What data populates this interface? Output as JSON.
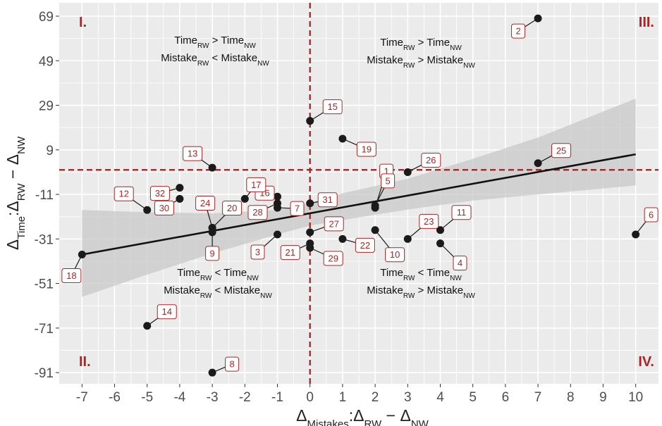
{
  "chart_data": {
    "type": "scatter",
    "title": "",
    "xlabel": {
      "main": "Δ",
      "sub": "Mistakes",
      "rest": ":Δ",
      "sub2": "RW",
      "rest2": " − Δ",
      "sub3": "NW"
    },
    "ylabel": {
      "main": "Δ",
      "sub": "Time",
      "rest": ":Δ",
      "sub2": "RW",
      "rest2": " − Δ",
      "sub3": "NW"
    },
    "xlim": [
      -7.7,
      10.7
    ],
    "ylim": [
      -96,
      75
    ],
    "xticks": [
      -7,
      -6,
      -5,
      -4,
      -3,
      -2,
      -1,
      0,
      1,
      2,
      3,
      4,
      5,
      6,
      7,
      8,
      9,
      10
    ],
    "yticks": [
      69,
      49,
      29,
      9,
      -11,
      -31,
      -51,
      -71,
      -91
    ],
    "grid": true,
    "colors": {
      "panel": "#ebebeb",
      "grid": "#ffffff",
      "points": "#1a1a1a",
      "label": "#b22222",
      "reference_line": "#a51e1e",
      "fit_line": "#111111",
      "ribbon": "#c8c8c8"
    },
    "reference_lines": {
      "x": 0,
      "y": 0
    },
    "points": [
      {
        "id": "1",
        "x": 2,
        "y": -17
      },
      {
        "id": "2",
        "x": 7,
        "y": 68
      },
      {
        "id": "3",
        "x": -1,
        "y": -29
      },
      {
        "id": "4",
        "x": 4,
        "y": -33
      },
      {
        "id": "5",
        "x": 2,
        "y": -16
      },
      {
        "id": "6",
        "x": 10,
        "y": -29
      },
      {
        "id": "7",
        "x": -1,
        "y": -17
      },
      {
        "id": "8",
        "x": -3,
        "y": -91
      },
      {
        "id": "9",
        "x": -3,
        "y": -28
      },
      {
        "id": "10",
        "x": 2,
        "y": -27
      },
      {
        "id": "11",
        "x": 4,
        "y": -27
      },
      {
        "id": "12",
        "x": -5,
        "y": -18
      },
      {
        "id": "13",
        "x": -3,
        "y": 1
      },
      {
        "id": "14",
        "x": -5,
        "y": -70
      },
      {
        "id": "15",
        "x": 0,
        "y": 22
      },
      {
        "id": "16",
        "x": -1,
        "y": -12
      },
      {
        "id": "17",
        "x": -2,
        "y": -13
      },
      {
        "id": "18",
        "x": -7,
        "y": -38
      },
      {
        "id": "19",
        "x": 1,
        "y": 14
      },
      {
        "id": "20",
        "x": -3,
        "y": -26
      },
      {
        "id": "21",
        "x": 0,
        "y": -33
      },
      {
        "id": "22",
        "x": 1,
        "y": -31
      },
      {
        "id": "23",
        "x": 3,
        "y": -31
      },
      {
        "id": "24",
        "x": -3,
        "y": -26
      },
      {
        "id": "25",
        "x": 7,
        "y": 3
      },
      {
        "id": "26",
        "x": 3,
        "y": -1
      },
      {
        "id": "27",
        "x": 0,
        "y": -28
      },
      {
        "id": "28",
        "x": -1,
        "y": -15
      },
      {
        "id": "29",
        "x": 0,
        "y": -35
      },
      {
        "id": "30",
        "x": -4,
        "y": -13
      },
      {
        "id": "31",
        "x": 0,
        "y": -15
      },
      {
        "id": "32",
        "x": -4,
        "y": -8
      }
    ],
    "fit": {
      "x": [
        -7,
        10
      ],
      "y": [
        -38,
        7
      ]
    },
    "ribbon": {
      "x": [
        -7,
        -5,
        -3,
        -1,
        0,
        1,
        3,
        5,
        7,
        10
      ],
      "upper": [
        -18,
        -19,
        -19.5,
        -18,
        -15,
        -10.5,
        -4,
        5,
        14.5,
        32
      ],
      "lower": [
        -57,
        -47,
        -37.5,
        -29,
        -25,
        -22.5,
        -17.8,
        -13.8,
        -11,
        -7
      ]
    },
    "quadrants": [
      {
        "numeral": "I.",
        "corner": "top-left"
      },
      {
        "numeral": "II.",
        "corner": "bottom-left"
      },
      {
        "numeral": "III.",
        "corner": "top-right"
      },
      {
        "numeral": "IV.",
        "corner": "bottom-right"
      }
    ],
    "annotations": [
      {
        "position": "upper-left",
        "line1": [
          {
            "t": "Time"
          },
          {
            "t": "RW",
            "sub": true
          },
          {
            "t": " > Time"
          },
          {
            "t": "NW",
            "sub": true
          }
        ],
        "line2": [
          {
            "t": "Mistake"
          },
          {
            "t": "RW",
            "sub": true
          },
          {
            "t": " < Mistake"
          },
          {
            "t": "NW",
            "sub": true
          }
        ]
      },
      {
        "position": "upper-right",
        "line1": [
          {
            "t": "Time"
          },
          {
            "t": "RW",
            "sub": true
          },
          {
            "t": " > Time"
          },
          {
            "t": "NW",
            "sub": true
          }
        ],
        "line2": [
          {
            "t": "Mistake"
          },
          {
            "t": "RW",
            "sub": true
          },
          {
            "t": " > Mistake"
          },
          {
            "t": "NW",
            "sub": true
          }
        ]
      },
      {
        "position": "lower-left",
        "line1": [
          {
            "t": "Time"
          },
          {
            "t": "RW",
            "sub": true
          },
          {
            "t": " < Time"
          },
          {
            "t": "NW",
            "sub": true
          }
        ],
        "line2": [
          {
            "t": "Mistake"
          },
          {
            "t": "RW",
            "sub": true
          },
          {
            "t": " < Mistake"
          },
          {
            "t": "NW",
            "sub": true
          }
        ]
      },
      {
        "position": "lower-right",
        "line1": [
          {
            "t": "Time"
          },
          {
            "t": "RW",
            "sub": true
          },
          {
            "t": " < Time"
          },
          {
            "t": "NW",
            "sub": true
          }
        ],
        "line2": [
          {
            "t": "Mistake"
          },
          {
            "t": "RW",
            "sub": true
          },
          {
            "t": " > Mistake"
          },
          {
            "t": "NW",
            "sub": true
          }
        ]
      }
    ]
  }
}
